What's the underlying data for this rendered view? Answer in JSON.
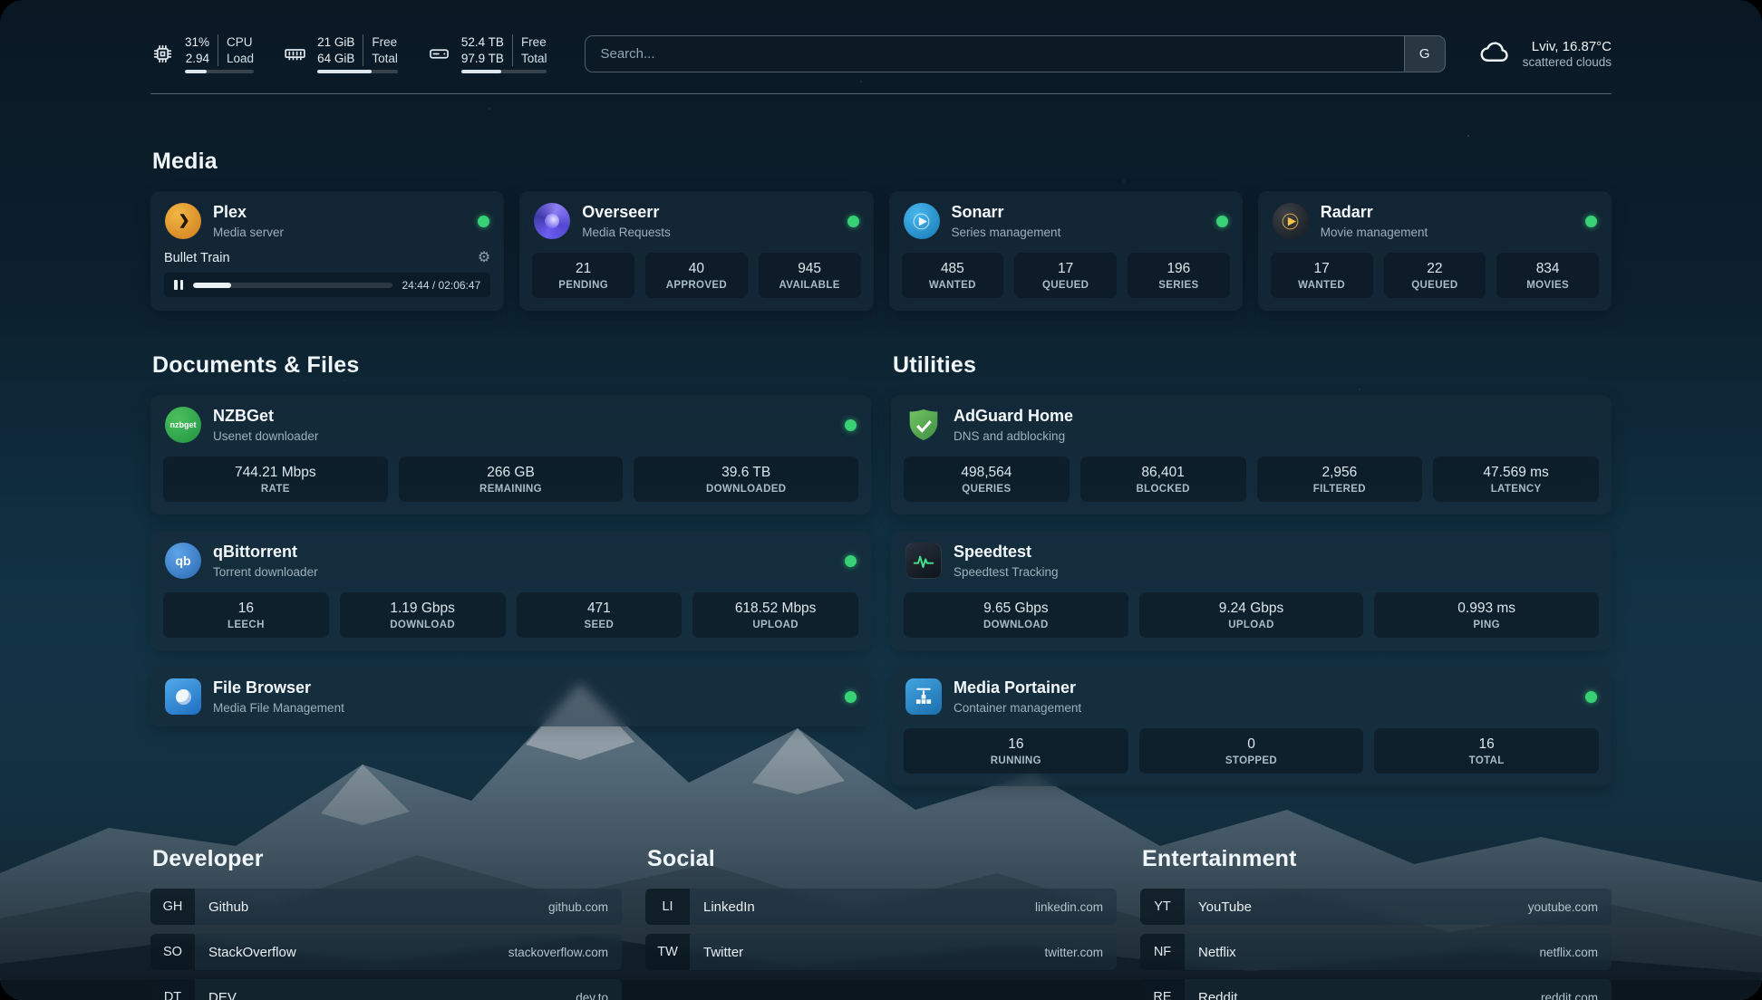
{
  "colors": {
    "status_online": "#38d175",
    "accent_progress": "#dfe7ec"
  },
  "topbar": {
    "cpu": {
      "values": [
        "31%",
        "2.94"
      ],
      "labels": [
        "CPU",
        "Load"
      ],
      "progress": 31
    },
    "memory": {
      "values": [
        "21 GiB",
        "64 GiB"
      ],
      "labels": [
        "Free",
        "Total"
      ],
      "progress": 67
    },
    "disk": {
      "values": [
        "52.4 TB",
        "97.9 TB"
      ],
      "labels": [
        "Free",
        "Total"
      ],
      "progress": 47
    },
    "search": {
      "placeholder": "Search...",
      "button_label": "G"
    },
    "weather": {
      "line1": "Lviv, 16.87°C",
      "line2": "scattered clouds"
    }
  },
  "sections": {
    "media": {
      "title": "Media",
      "services": [
        {
          "name": "Plex",
          "description": "Media server",
          "icon": "plex",
          "status": "online",
          "player": {
            "track": "Bullet Train",
            "time": "24:44 / 02:06:47",
            "progress": 19
          }
        },
        {
          "name": "Overseerr",
          "description": "Media Requests",
          "icon": "overseerr",
          "status": "online",
          "stats": [
            {
              "value": "21",
              "label": "PENDING"
            },
            {
              "value": "40",
              "label": "APPROVED"
            },
            {
              "value": "945",
              "label": "AVAILABLE"
            }
          ]
        },
        {
          "name": "Sonarr",
          "description": "Series management",
          "icon": "sonarr",
          "status": "online",
          "stats": [
            {
              "value": "485",
              "label": "WANTED"
            },
            {
              "value": "17",
              "label": "QUEUED"
            },
            {
              "value": "196",
              "label": "SERIES"
            }
          ]
        },
        {
          "name": "Radarr",
          "description": "Movie management",
          "icon": "radarr",
          "status": "online",
          "stats": [
            {
              "value": "17",
              "label": "WANTED"
            },
            {
              "value": "22",
              "label": "QUEUED"
            },
            {
              "value": "834",
              "label": "MOVIES"
            }
          ]
        }
      ]
    },
    "documents": {
      "title": "Documents & Files",
      "services": [
        {
          "name": "NZBGet",
          "description": "Usenet downloader",
          "icon": "nzbget",
          "status": "online",
          "stats": [
            {
              "value": "744.21 Mbps",
              "label": "RATE"
            },
            {
              "value": "266 GB",
              "label": "REMAINING"
            },
            {
              "value": "39.6 TB",
              "label": "DOWNLOADED"
            }
          ]
        },
        {
          "name": "qBittorrent",
          "description": "Torrent downloader",
          "icon": "qbittorrent",
          "status": "online",
          "stats": [
            {
              "value": "16",
              "label": "LEECH"
            },
            {
              "value": "1.19 Gbps",
              "label": "DOWNLOAD"
            },
            {
              "value": "471",
              "label": "SEED"
            },
            {
              "value": "618.52 Mbps",
              "label": "UPLOAD"
            }
          ]
        },
        {
          "name": "File Browser",
          "description": "Media File Management",
          "icon": "filebrowser",
          "status": "online",
          "stats": []
        }
      ]
    },
    "utilities": {
      "title": "Utilities",
      "services": [
        {
          "name": "AdGuard Home",
          "description": "DNS and adblocking",
          "icon": "adguard",
          "status": "",
          "stats": [
            {
              "value": "498,564",
              "label": "QUERIES"
            },
            {
              "value": "86,401",
              "label": "BLOCKED"
            },
            {
              "value": "2,956",
              "label": "FILTERED"
            },
            {
              "value": "47.569 ms",
              "label": "LATENCY"
            }
          ]
        },
        {
          "name": "Speedtest",
          "description": "Speedtest Tracking",
          "icon": "speedtest",
          "status": "",
          "stats": [
            {
              "value": "9.65 Gbps",
              "label": "DOWNLOAD"
            },
            {
              "value": "9.24 Gbps",
              "label": "UPLOAD"
            },
            {
              "value": "0.993 ms",
              "label": "PING"
            }
          ]
        },
        {
          "name": "Media Portainer",
          "description": "Container management",
          "icon": "portainer",
          "status": "online",
          "stats": [
            {
              "value": "16",
              "label": "RUNNING"
            },
            {
              "value": "0",
              "label": "STOPPED"
            },
            {
              "value": "16",
              "label": "TOTAL"
            }
          ]
        }
      ]
    }
  },
  "bookmarks": [
    {
      "title": "Developer",
      "items": [
        {
          "abbr": "GH",
          "name": "Github",
          "url": "github.com"
        },
        {
          "abbr": "SO",
          "name": "StackOverflow",
          "url": "stackoverflow.com"
        },
        {
          "abbr": "DT",
          "name": "DEV",
          "url": "dev.to"
        }
      ]
    },
    {
      "title": "Social",
      "items": [
        {
          "abbr": "LI",
          "name": "LinkedIn",
          "url": "linkedin.com"
        },
        {
          "abbr": "TW",
          "name": "Twitter",
          "url": "twitter.com"
        }
      ]
    },
    {
      "title": "Entertainment",
      "items": [
        {
          "abbr": "YT",
          "name": "YouTube",
          "url": "youtube.com"
        },
        {
          "abbr": "NF",
          "name": "Netflix",
          "url": "netflix.com"
        },
        {
          "abbr": "RE",
          "name": "Reddit",
          "url": "reddit.com"
        }
      ]
    }
  ]
}
